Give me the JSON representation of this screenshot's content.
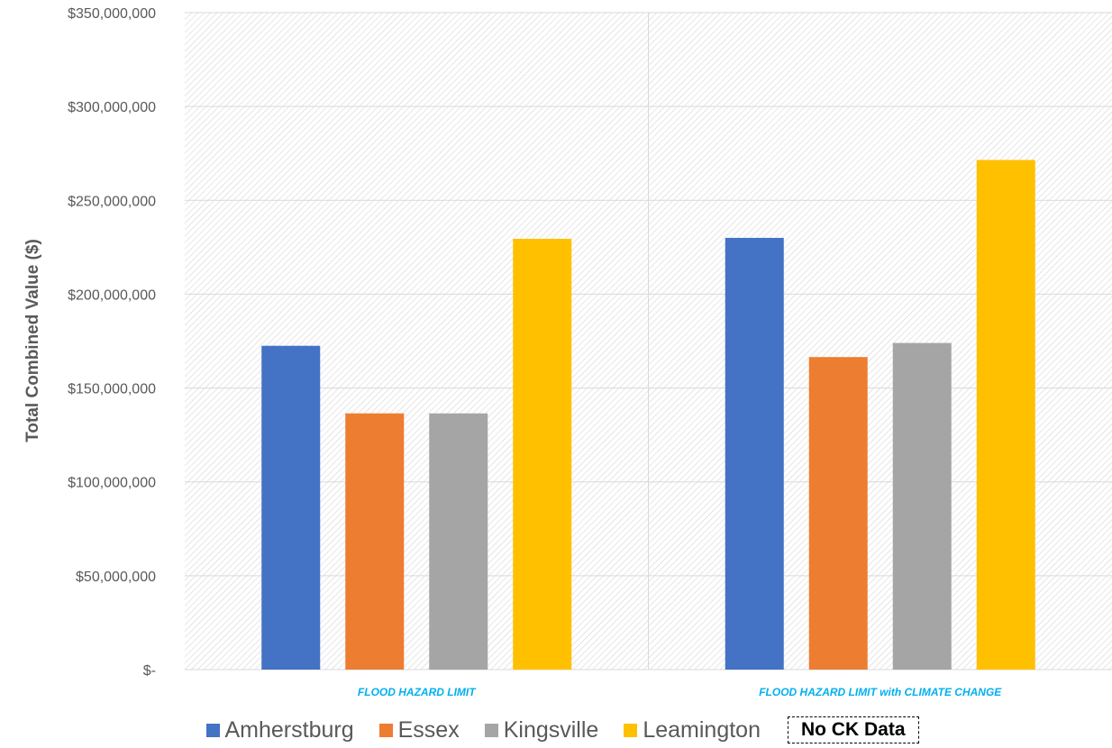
{
  "chart_data": {
    "type": "bar",
    "categories": [
      "FLOOD HAZARD LIMIT",
      "FLOOD HAZARD LIMIT with CLIMATE CHANGE"
    ],
    "series": [
      {
        "name": "Amherstburg",
        "color": "#4472C4",
        "values": [
          172500000,
          230000000
        ]
      },
      {
        "name": "Essex",
        "color": "#ED7D31",
        "values": [
          136500000,
          166500000
        ]
      },
      {
        "name": "Kingsville",
        "color": "#A5A5A5",
        "values": [
          136500000,
          174000000
        ]
      },
      {
        "name": "Leamington",
        "color": "#FFC000",
        "values": [
          229500000,
          271500000
        ]
      }
    ],
    "ylabel": "Total Combined Value ($)",
    "ylim": [
      0,
      350000000
    ],
    "yticks": [
      0,
      50000000,
      100000000,
      150000000,
      200000000,
      250000000,
      300000000,
      350000000
    ],
    "ytick_labels": [
      "$-",
      "$50,000,000",
      "$100,000,000",
      "$150,000,000",
      "$200,000,000",
      "$250,000,000",
      "$300,000,000",
      "$350,000,000"
    ],
    "grid": true,
    "legend_position": "bottom",
    "category_label_color": "#00B0F0",
    "annotation": "No CK Data"
  }
}
